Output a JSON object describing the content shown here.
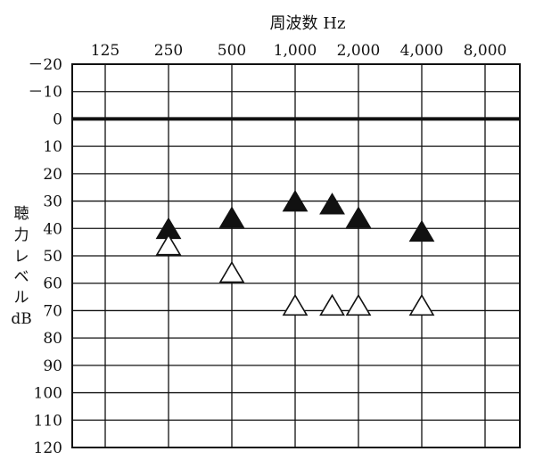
{
  "chart_data": {
    "type": "scatter",
    "title": "周波数 Hz",
    "ylabel": [
      "聴",
      "力",
      "レ",
      "ベ",
      "ル",
      "dB"
    ],
    "x_ticks": [
      "125",
      "250",
      "500",
      "1,000",
      "2,000",
      "4,000",
      "8,000"
    ],
    "y_ticks": [
      "－20",
      "－10",
      "0",
      "10",
      "20",
      "30",
      "40",
      "50",
      "60",
      "70",
      "80",
      "90",
      "100",
      "110",
      "120"
    ],
    "y_values": [
      -20,
      -10,
      0,
      10,
      20,
      30,
      40,
      50,
      60,
      70,
      80,
      90,
      100,
      110,
      120
    ],
    "ylim": [
      -20,
      120
    ],
    "y_inverted": true,
    "grid": true,
    "series": [
      {
        "marker": "filled-triangle",
        "color": "#111111",
        "points": [
          {
            "x": 250,
            "y": 40
          },
          {
            "x": 500,
            "y": 36
          },
          {
            "x": 1000,
            "y": 30
          },
          {
            "x": 1500,
            "y": 31
          },
          {
            "x": 2000,
            "y": 36
          },
          {
            "x": 4000,
            "y": 41
          }
        ]
      },
      {
        "marker": "open-triangle",
        "color": "#111111",
        "points": [
          {
            "x": 250,
            "y": 46
          },
          {
            "x": 500,
            "y": 56
          },
          {
            "x": 1000,
            "y": 68
          },
          {
            "x": 1500,
            "y": 68
          },
          {
            "x": 2000,
            "y": 68
          },
          {
            "x": 4000,
            "y": 68
          }
        ]
      }
    ]
  }
}
